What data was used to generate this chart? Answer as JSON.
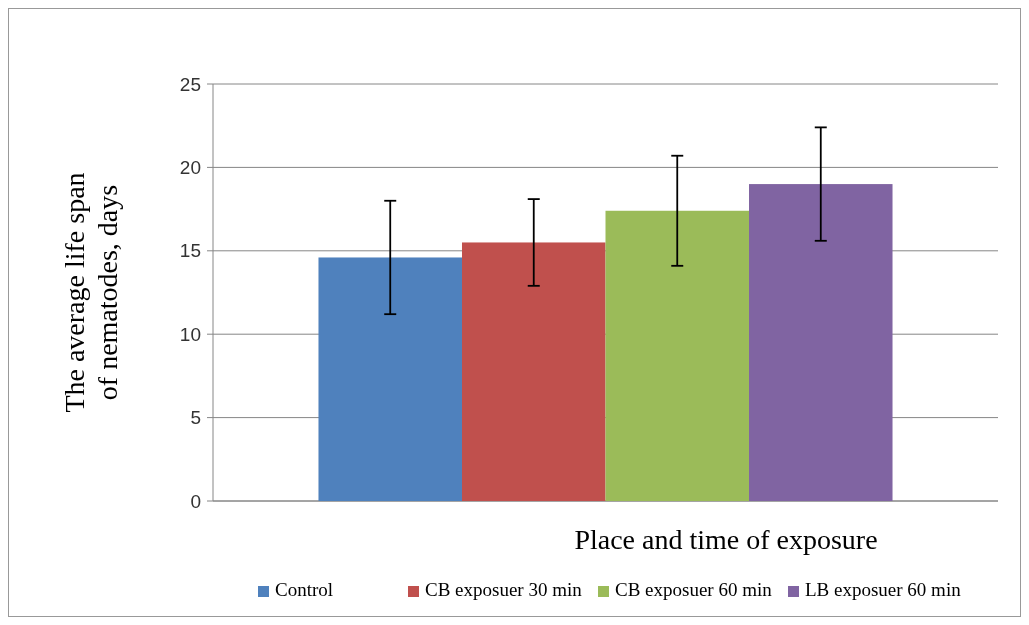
{
  "chart_data": {
    "type": "bar",
    "xlabel": "Place and time of exposure",
    "ylabel": "The average life span of nematodes, days",
    "categories": [
      null
    ],
    "series": [
      {
        "name": "Control",
        "color": "#4f81bd",
        "values": [
          14.6
        ],
        "errors": [
          3.4
        ]
      },
      {
        "name": "CB exposuer 30 min",
        "color": "#c0504d",
        "values": [
          15.5
        ],
        "errors": [
          2.6
        ]
      },
      {
        "name": "CB exposuer 60 min",
        "color": "#9bbb59",
        "values": [
          17.4
        ],
        "errors": [
          3.3
        ]
      },
      {
        "name": "LB exposuer 60 min",
        "color": "#8064a2",
        "values": [
          19.0
        ],
        "errors": [
          3.4
        ]
      }
    ],
    "ylim": [
      0,
      25
    ],
    "yticks": [
      0,
      5,
      10,
      15,
      20,
      25
    ],
    "grid": "y",
    "legend": "bottom"
  }
}
